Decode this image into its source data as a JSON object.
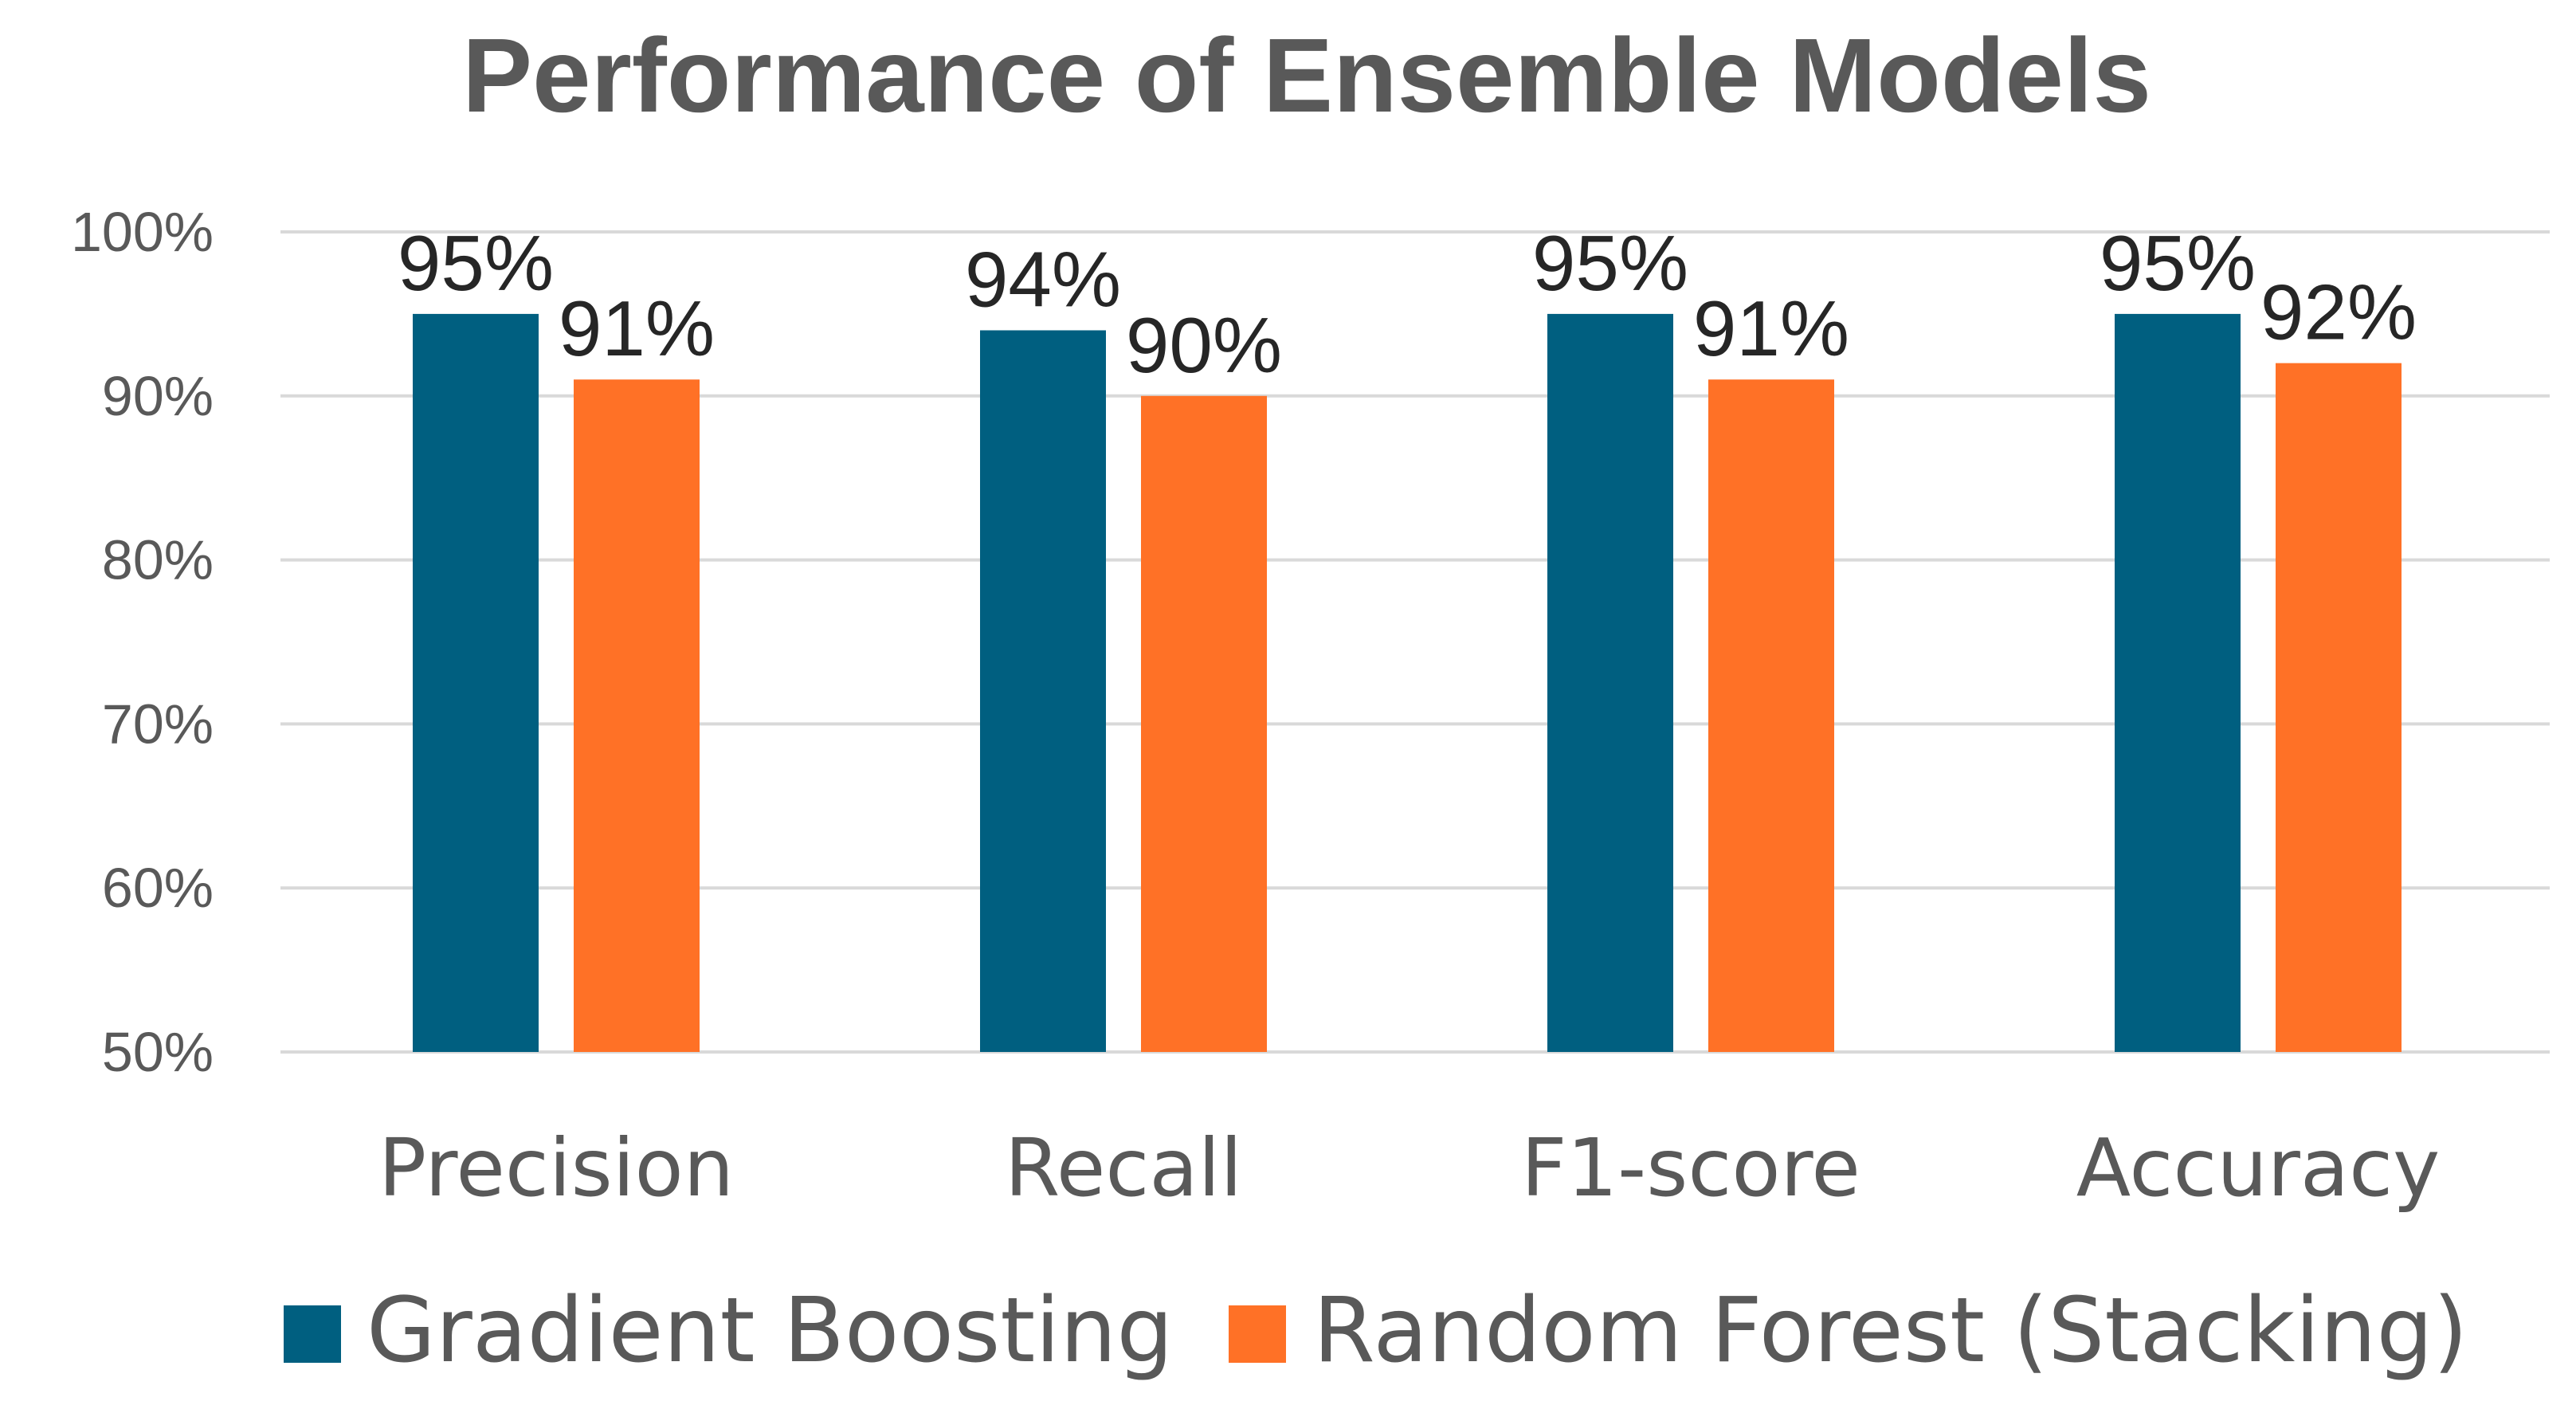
{
  "chart_data": {
    "type": "bar",
    "title": "Performance of Ensemble Models",
    "categories": [
      "Precision",
      "Recall",
      "F1-score",
      "Accuracy"
    ],
    "series": [
      {
        "name": "Gradient Boosting",
        "color": "#005f80",
        "values": [
          95,
          94,
          95,
          95
        ],
        "labels": [
          "95%",
          "94%",
          "95%",
          "95%"
        ]
      },
      {
        "name": "Random Forest (Stacking)",
        "color": "#ff7126",
        "values": [
          91,
          90,
          91,
          92
        ],
        "labels": [
          "91%",
          "90%",
          "91%",
          "92%"
        ]
      }
    ],
    "ylim": [
      50,
      100
    ],
    "yticks": [
      50,
      60,
      70,
      80,
      90,
      100
    ],
    "ytick_labels": [
      "50%",
      "60%",
      "70%",
      "80%",
      "90%",
      "100%"
    ],
    "xlabel": "",
    "ylabel": "",
    "grid": true,
    "legend_position": "bottom"
  }
}
